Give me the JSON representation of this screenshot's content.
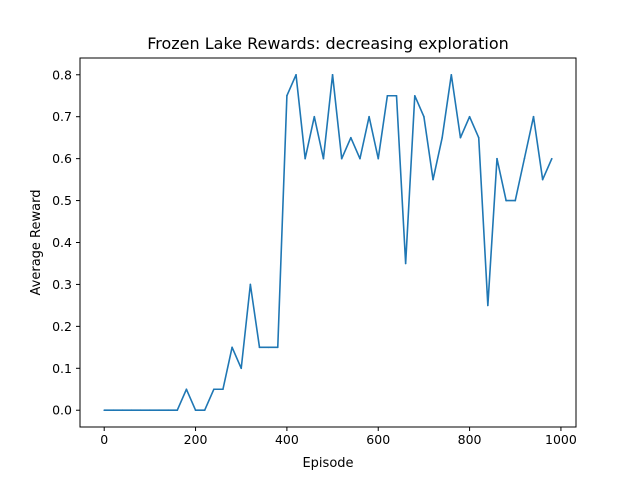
{
  "chart_data": {
    "type": "line",
    "title": "Frozen Lake Rewards: decreasing exploration",
    "xlabel": "Episode",
    "ylabel": "Average Reward",
    "xlim": [
      -53,
      1033
    ],
    "ylim": [
      -0.04,
      0.84
    ],
    "xticks": [
      0,
      200,
      400,
      600,
      800,
      1000
    ],
    "yticks": [
      0.0,
      0.1,
      0.2,
      0.3,
      0.4,
      0.5,
      0.6,
      0.7,
      0.8
    ],
    "ytick_labels": [
      "0.0",
      "0.1",
      "0.2",
      "0.3",
      "0.4",
      "0.5",
      "0.6",
      "0.7",
      "0.8"
    ],
    "grid": false,
    "line_color": "#1f77b4",
    "x": [
      0,
      20,
      40,
      60,
      80,
      100,
      120,
      140,
      160,
      180,
      200,
      220,
      240,
      260,
      280,
      300,
      320,
      340,
      360,
      380,
      400,
      420,
      440,
      460,
      480,
      500,
      520,
      540,
      560,
      580,
      600,
      620,
      640,
      660,
      680,
      700,
      720,
      740,
      760,
      780,
      800,
      820,
      840,
      860,
      880,
      900,
      920,
      940,
      960,
      980
    ],
    "series": [
      {
        "values": [
          0.0,
          0.0,
          0.0,
          0.0,
          0.0,
          0.0,
          0.0,
          0.0,
          0.0,
          0.05,
          0.0,
          0.0,
          0.05,
          0.05,
          0.15,
          0.1,
          0.3,
          0.15,
          0.15,
          0.15,
          0.75,
          0.8,
          0.6,
          0.7,
          0.6,
          0.8,
          0.6,
          0.65,
          0.6,
          0.7,
          0.6,
          0.75,
          0.75,
          0.35,
          0.75,
          0.7,
          0.55,
          0.65,
          0.8,
          0.65,
          0.7,
          0.65,
          0.25,
          0.6,
          0.5,
          0.5,
          0.6,
          0.7,
          0.55,
          0.6
        ]
      }
    ]
  }
}
